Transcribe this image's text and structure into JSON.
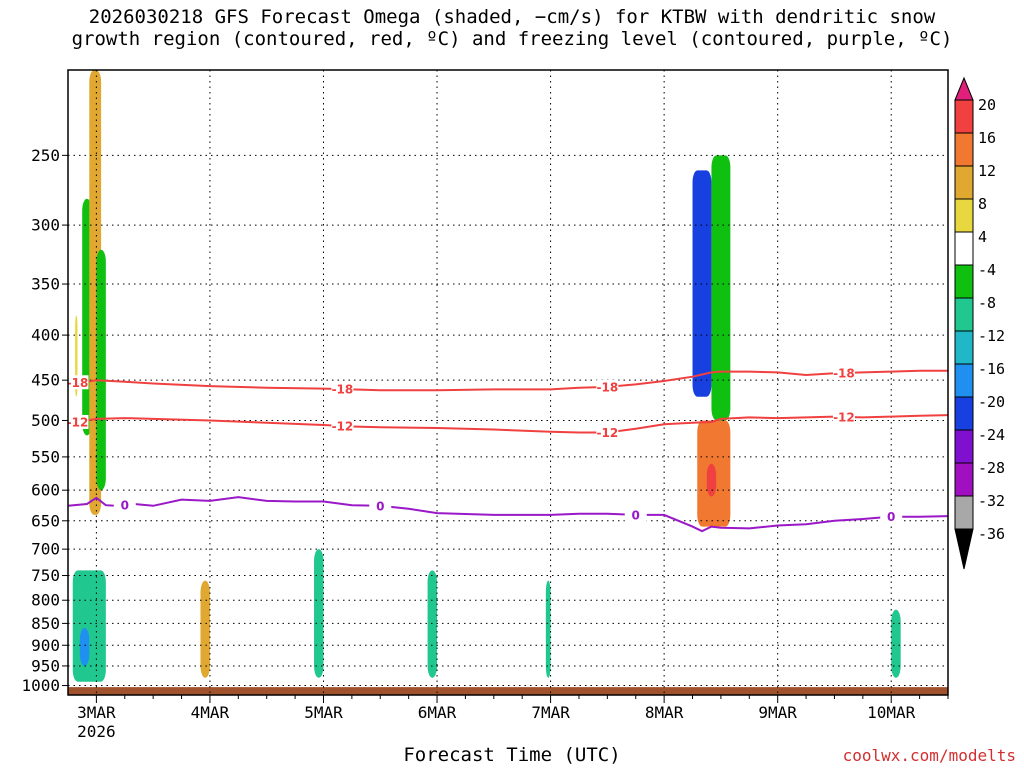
{
  "title_line1": "2026030218 GFS Forecast Omega (shaded, −cm/s) for KTBW with dendritic snow",
  "title_line2": "growth region (contoured, red, ºC) and freezing level (contoured, purple, ºC)",
  "xlabel": "Forecast Time (UTC)",
  "credit": "coolwx.com/modelts",
  "chart_data": {
    "type": "heatmap",
    "title": "2026030218 GFS Forecast Omega (shaded, −cm/s) for KTBW with dendritic snow growth region (contoured, red, ºC) and freezing level (contoured, purple, ºC)",
    "xlabel": "Forecast Time (UTC)",
    "ylabel": "",
    "x_ticks": [
      "3MAR",
      "4MAR",
      "5MAR",
      "6MAR",
      "7MAR",
      "8MAR",
      "9MAR",
      "10MAR"
    ],
    "x_tick_sublabel": "2026",
    "x_range_hours": [
      -6,
      180
    ],
    "y_ticks": [
      250,
      300,
      350,
      400,
      450,
      500,
      550,
      600,
      650,
      700,
      750,
      800,
      850,
      900,
      950,
      1000
    ],
    "y_range": [
      1025,
      200
    ],
    "y_scale": "log-pressure",
    "grid": "dotted",
    "colorbar": {
      "labels": [
        "20",
        "16",
        "12",
        "8",
        "4",
        "-4",
        "-8",
        "-12",
        "-16",
        "-20",
        "-24",
        "-28",
        "-32",
        "-36"
      ],
      "colors": [
        "#e0207a",
        "#f04040",
        "#f07830",
        "#e0a830",
        "#e8d840",
        "#ffffff",
        "#10c010",
        "#20c890",
        "#20b8c8",
        "#2090f0",
        "#1840e0",
        "#8010d0",
        "#a010c0",
        "#a8a8a8",
        "#000000"
      ]
    },
    "contours": [
      {
        "name": "-18",
        "color": "#f04040",
        "levels_label_hours": [
          -4,
          52,
          108,
          158
        ],
        "x_hours": [
          -6,
          -2,
          0,
          6,
          12,
          24,
          36,
          48,
          54,
          60,
          72,
          84,
          96,
          102,
          108,
          114,
          120,
          126,
          130,
          132,
          138,
          144,
          150,
          156,
          162,
          168,
          174,
          180
        ],
        "y_hpa": [
          453,
          452,
          450,
          452,
          454,
          457,
          459,
          460,
          461,
          462,
          462,
          461,
          461,
          459,
          458,
          455,
          451,
          446,
          441,
          440,
          440,
          441,
          444,
          442,
          441,
          440,
          439,
          439
        ]
      },
      {
        "name": "-12",
        "color": "#f04040",
        "levels_label_hours": [
          -4,
          52,
          108,
          158
        ],
        "x_hours": [
          -6,
          -2,
          0,
          6,
          12,
          24,
          36,
          48,
          54,
          60,
          72,
          84,
          96,
          102,
          108,
          114,
          120,
          126,
          130,
          132,
          138,
          144,
          150,
          156,
          162,
          168,
          174,
          180
        ],
        "y_hpa": [
          504,
          500,
          498,
          497,
          498,
          500,
          503,
          506,
          508,
          509,
          510,
          512,
          515,
          516,
          516,
          511,
          505,
          503,
          502,
          498,
          496,
          497,
          496,
          495,
          496,
          495,
          494,
          493
        ]
      },
      {
        "name": "0",
        "color": "#9a18c8",
        "levels_label_hours": [
          6,
          60,
          114,
          168
        ],
        "x_hours": [
          -6,
          -2,
          0,
          2,
          4,
          8,
          12,
          18,
          24,
          30,
          36,
          42,
          48,
          54,
          60,
          66,
          72,
          84,
          96,
          102,
          108,
          114,
          120,
          126,
          128,
          130,
          132,
          138,
          144,
          150,
          156,
          162,
          168,
          174,
          180
        ],
        "y_hpa": [
          625,
          622,
          612,
          624,
          625,
          622,
          625,
          615,
          617,
          611,
          617,
          618,
          618,
          624,
          625,
          630,
          637,
          640,
          640,
          638,
          638,
          640,
          640,
          660,
          668,
          660,
          662,
          663,
          658,
          656,
          650,
          647,
          643,
          643,
          642
        ]
      }
    ],
    "shaded_regions": [
      {
        "x_hours": [
          -4.5,
          -4
        ],
        "p_hpa": [
          380,
          470
        ],
        "omega": 4
      },
      {
        "x_hours": [
          -3,
          -1
        ],
        "p_hpa": [
          280,
          520
        ],
        "omega": -8
      },
      {
        "x_hours": [
          -1.5,
          1
        ],
        "p_hpa": [
          200,
          640
        ],
        "omega": 8
      },
      {
        "x_hours": [
          0,
          2
        ],
        "p_hpa": [
          320,
          600
        ],
        "omega": -8
      },
      {
        "x_hours": [
          -5,
          2
        ],
        "p_hpa": [
          740,
          990
        ],
        "omega": -12
      },
      {
        "x_hours": [
          -3.5,
          -1.5
        ],
        "p_hpa": [
          860,
          950
        ],
        "omega": -20
      },
      {
        "x_hours": [
          22,
          24
        ],
        "p_hpa": [
          760,
          980
        ],
        "omega": 8
      },
      {
        "x_hours": [
          46,
          48
        ],
        "p_hpa": [
          700,
          980
        ],
        "omega": -12
      },
      {
        "x_hours": [
          70,
          72
        ],
        "p_hpa": [
          740,
          980
        ],
        "omega": -12
      },
      {
        "x_hours": [
          95,
          96
        ],
        "p_hpa": [
          760,
          980
        ],
        "omega": -12
      },
      {
        "x_hours": [
          126,
          130
        ],
        "p_hpa": [
          260,
          470
        ],
        "omega": -24
      },
      {
        "x_hours": [
          130,
          134
        ],
        "p_hpa": [
          250,
          500
        ],
        "omega": -8
      },
      {
        "x_hours": [
          127,
          134
        ],
        "p_hpa": [
          500,
          660
        ],
        "omega": 12
      },
      {
        "x_hours": [
          129,
          131
        ],
        "p_hpa": [
          560,
          610
        ],
        "omega": 16
      },
      {
        "x_hours": [
          168,
          170
        ],
        "p_hpa": [
          820,
          980
        ],
        "omega": -12
      }
    ]
  }
}
